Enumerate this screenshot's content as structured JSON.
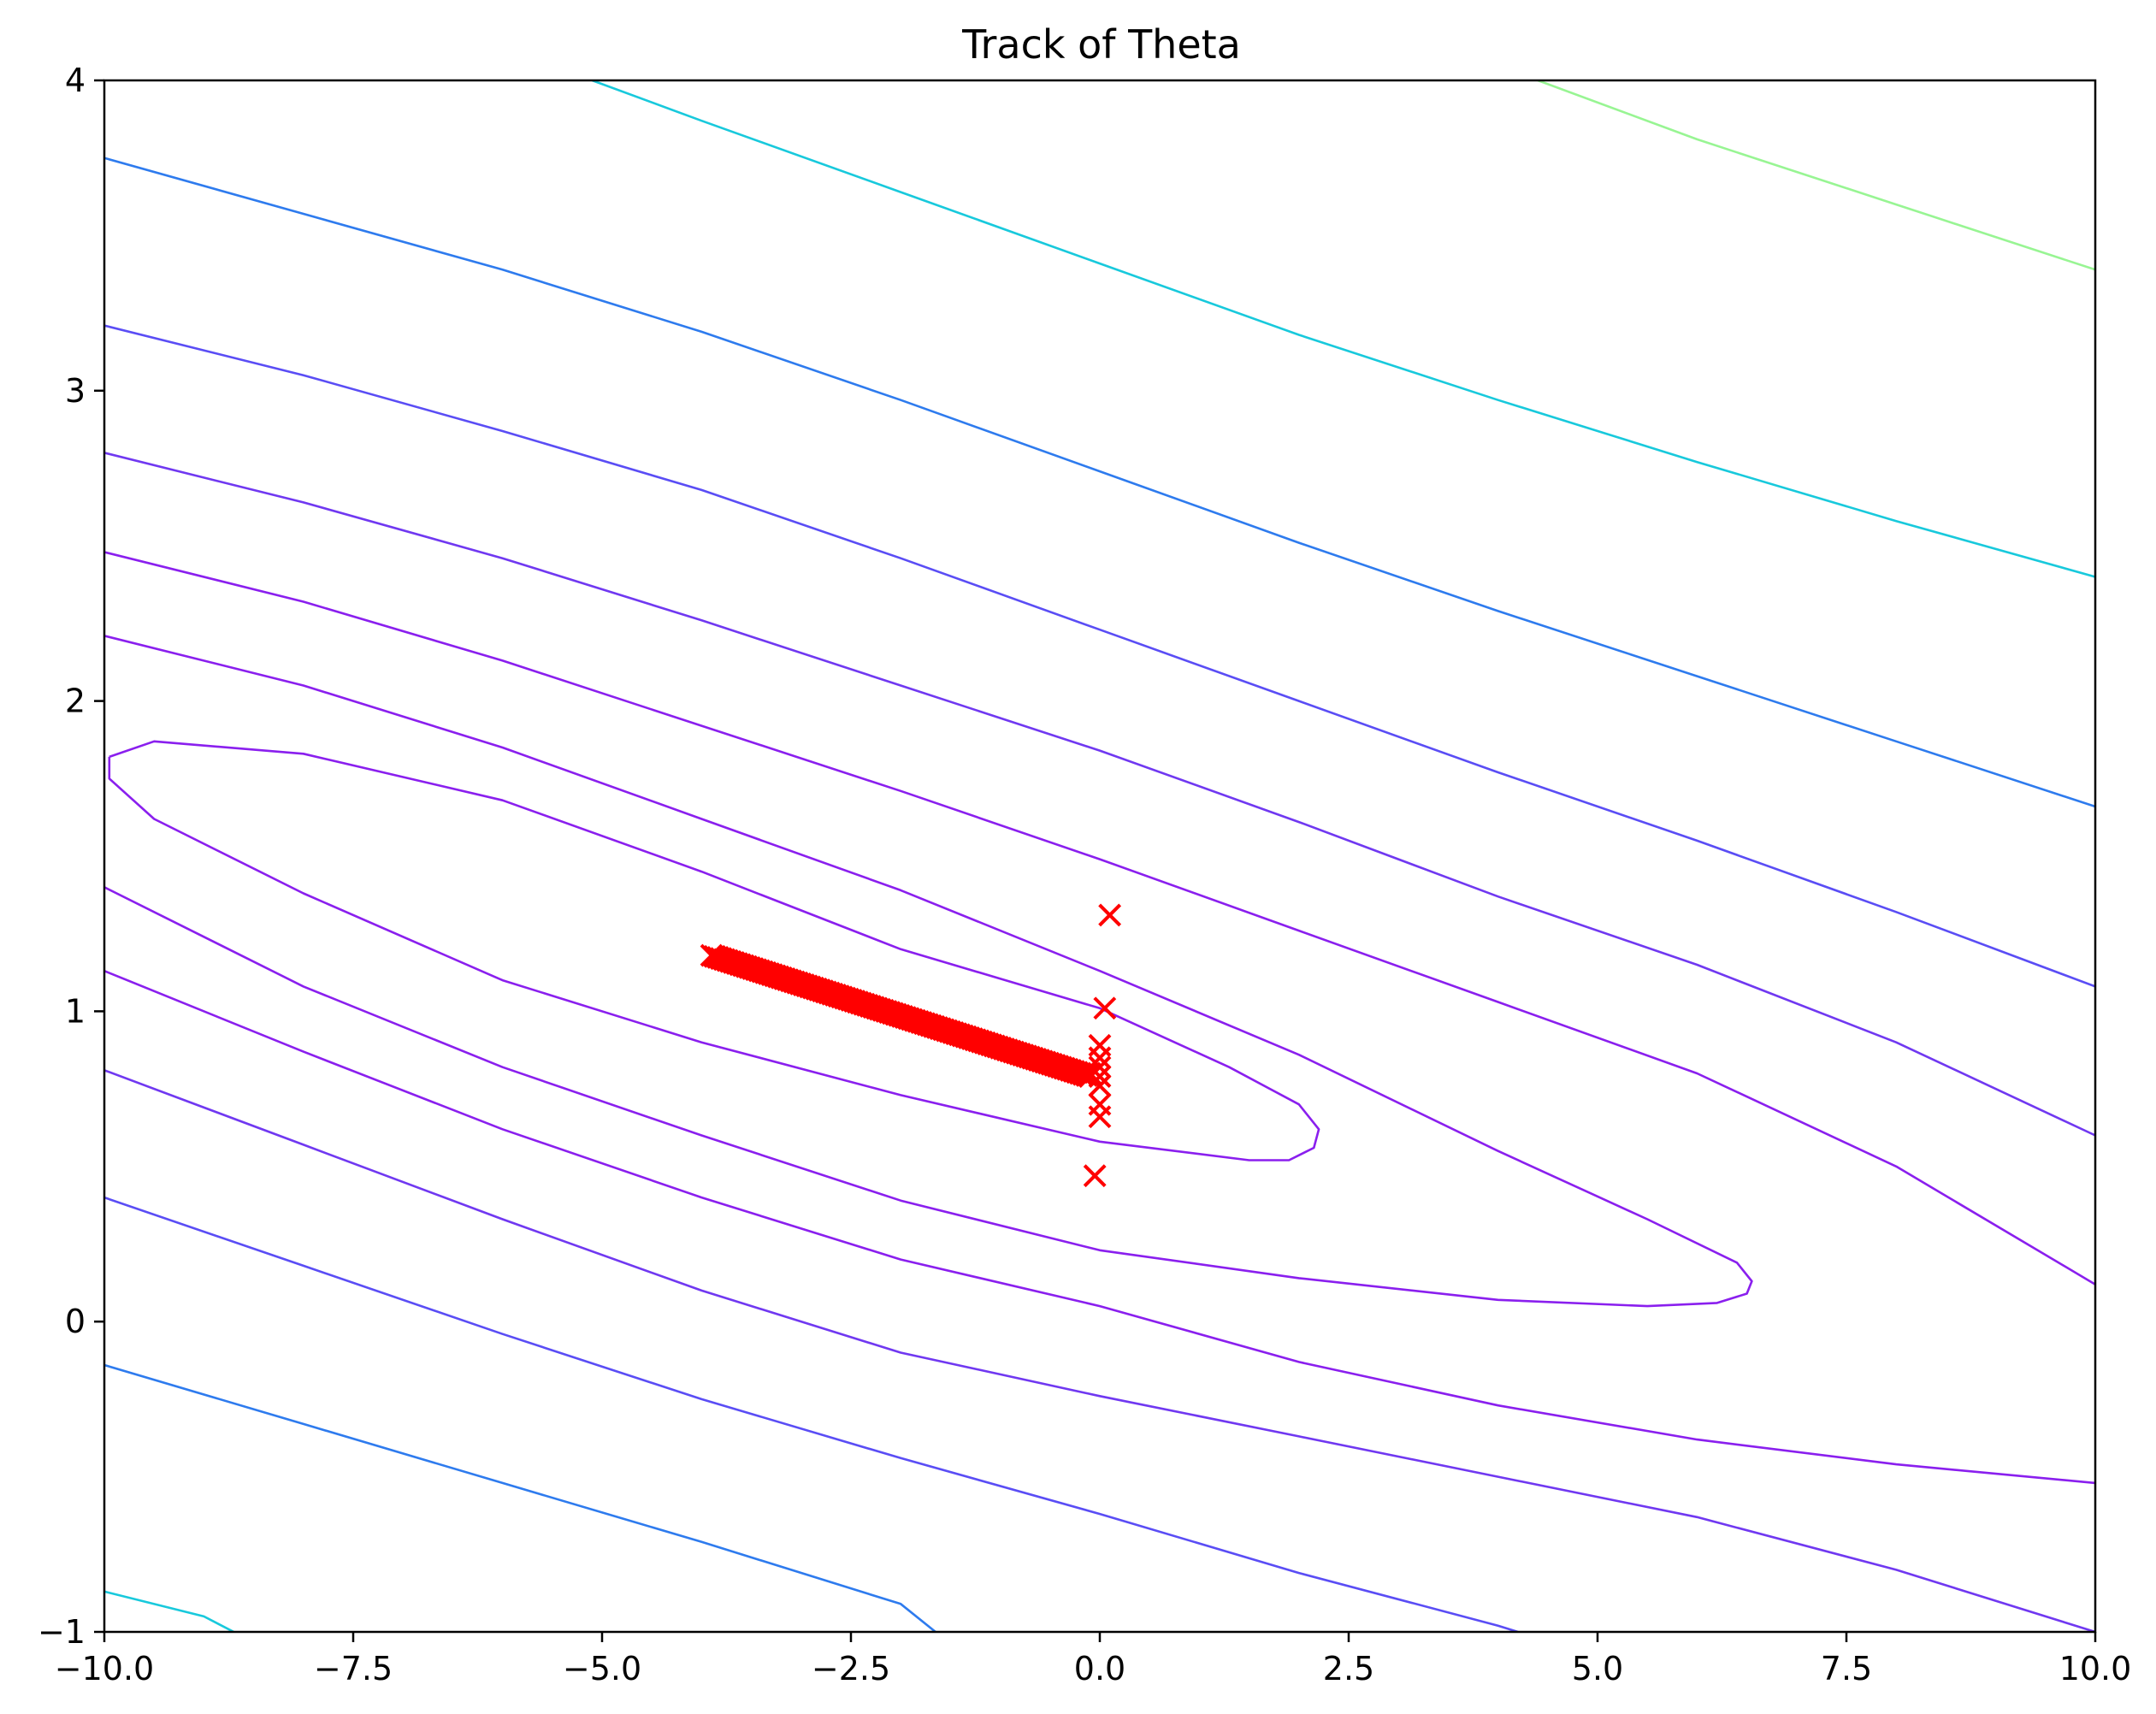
{
  "chart_data": {
    "type": "contour",
    "title": "Track of Theta",
    "xlabel": "",
    "ylabel": "",
    "xlim": [
      -10.0,
      10.0
    ],
    "ylim": [
      -1,
      4
    ],
    "x_ticks": [
      -10.0,
      -7.5,
      -5.0,
      -2.5,
      0.0,
      2.5,
      5.0,
      7.5,
      10.0
    ],
    "x_tick_labels": [
      "−10.0",
      "−7.5",
      "−5.0",
      "−2.5",
      "0.0",
      "2.5",
      "5.0",
      "7.5",
      "10.0"
    ],
    "y_ticks": [
      -1,
      0,
      1,
      2,
      3,
      4
    ],
    "y_tick_labels": [
      "−1",
      "0",
      "1",
      "2",
      "3",
      "4"
    ],
    "grid": false,
    "contours": [
      {
        "name": "ellipse-inner",
        "color": "#8a1fee",
        "points": [
          [
            -9.95,
            1.82
          ],
          [
            -9.5,
            1.87
          ],
          [
            -8.0,
            1.83
          ],
          [
            -6.0,
            1.68
          ],
          [
            -4.0,
            1.45
          ],
          [
            -2.0,
            1.2
          ],
          [
            0.0,
            1.01
          ],
          [
            1.3,
            0.82
          ],
          [
            2.0,
            0.7
          ],
          [
            2.2,
            0.62
          ],
          [
            2.15,
            0.56
          ],
          [
            1.9,
            0.52
          ],
          [
            1.5,
            0.52
          ],
          [
            0.0,
            0.58
          ],
          [
            -2.0,
            0.73
          ],
          [
            -4.0,
            0.9
          ],
          [
            -6.0,
            1.1
          ],
          [
            -8.0,
            1.38
          ],
          [
            -9.5,
            1.62
          ],
          [
            -9.95,
            1.75
          ],
          [
            -9.95,
            1.82
          ]
        ]
      },
      {
        "name": "ellipse-outer",
        "color": "#8a1fee",
        "points": [
          [
            -10.0,
            2.21
          ],
          [
            -8.0,
            2.05
          ],
          [
            -6.0,
            1.85
          ],
          [
            -4.0,
            1.62
          ],
          [
            -2.0,
            1.39
          ],
          [
            0.0,
            1.13
          ],
          [
            2.0,
            0.86
          ],
          [
            4.0,
            0.55
          ],
          [
            5.5,
            0.33
          ],
          [
            6.4,
            0.19
          ],
          [
            6.55,
            0.13
          ],
          [
            6.5,
            0.09
          ],
          [
            6.2,
            0.06
          ],
          [
            5.5,
            0.05
          ],
          [
            4.0,
            0.07
          ],
          [
            2.0,
            0.14
          ],
          [
            0.0,
            0.23
          ],
          [
            -2.0,
            0.39
          ],
          [
            -4.0,
            0.6
          ],
          [
            -6.0,
            0.82
          ],
          [
            -8.0,
            1.08
          ],
          [
            -10.0,
            1.4
          ]
        ]
      },
      {
        "name": "band-3-upper",
        "color": "#8a1fee",
        "points": [
          [
            -10.0,
            2.48
          ],
          [
            -8.0,
            2.32
          ],
          [
            -6.0,
            2.13
          ],
          [
            -4.0,
            1.92
          ],
          [
            -2.0,
            1.71
          ],
          [
            0.0,
            1.49
          ],
          [
            2.0,
            1.26
          ],
          [
            4.0,
            1.03
          ],
          [
            6.0,
            0.8
          ],
          [
            8.0,
            0.5
          ],
          [
            10.0,
            0.12
          ]
        ]
      },
      {
        "name": "band-3-lower",
        "color": "#8a1fee",
        "points": [
          [
            -10.0,
            1.13
          ],
          [
            -8.0,
            0.87
          ],
          [
            -6.0,
            0.62
          ],
          [
            -4.0,
            0.4
          ],
          [
            -2.0,
            0.2
          ],
          [
            0.0,
            0.05
          ],
          [
            2.0,
            -0.13
          ],
          [
            4.0,
            -0.27
          ],
          [
            6.0,
            -0.38
          ],
          [
            8.0,
            -0.46
          ],
          [
            10.0,
            -0.52
          ]
        ]
      },
      {
        "name": "band-4-upper",
        "color": "#7038f1",
        "points": [
          [
            -10.0,
            2.8
          ],
          [
            -8.0,
            2.64
          ],
          [
            -6.0,
            2.46
          ],
          [
            -4.0,
            2.26
          ],
          [
            -2.0,
            2.05
          ],
          [
            0.0,
            1.84
          ],
          [
            2.0,
            1.61
          ],
          [
            4.0,
            1.37
          ],
          [
            6.0,
            1.15
          ],
          [
            8.0,
            0.9
          ],
          [
            10.0,
            0.6
          ]
        ]
      },
      {
        "name": "band-4-lower",
        "color": "#7038f1",
        "points": [
          [
            -10.0,
            0.81
          ],
          [
            -8.0,
            0.57
          ],
          [
            -6.0,
            0.33
          ],
          [
            -4.0,
            0.1
          ],
          [
            -2.0,
            -0.1
          ],
          [
            0.0,
            -0.24
          ],
          [
            2.0,
            -0.37
          ],
          [
            4.0,
            -0.5
          ],
          [
            6.0,
            -0.63
          ],
          [
            8.0,
            -0.8
          ],
          [
            10.0,
            -1.0
          ]
        ]
      },
      {
        "name": "band-5-upper",
        "color": "#5a4df5",
        "points": [
          [
            -10.0,
            3.21
          ],
          [
            -8.0,
            3.05
          ],
          [
            -6.0,
            2.87
          ],
          [
            -4.0,
            2.68
          ],
          [
            -2.0,
            2.46
          ],
          [
            0.0,
            2.23
          ],
          [
            2.0,
            2.0
          ],
          [
            4.0,
            1.77
          ],
          [
            6.0,
            1.55
          ],
          [
            8.0,
            1.32
          ],
          [
            10.0,
            1.08
          ]
        ]
      },
      {
        "name": "band-5-lower",
        "color": "#5a4df5",
        "points": [
          [
            -10.0,
            0.4
          ],
          [
            -8.0,
            0.18
          ],
          [
            -6.0,
            -0.04
          ],
          [
            -4.0,
            -0.25
          ],
          [
            -2.0,
            -0.44
          ],
          [
            0.0,
            -0.62
          ],
          [
            2.0,
            -0.81
          ],
          [
            4.0,
            -0.98
          ],
          [
            4.2,
            -1.0
          ]
        ]
      },
      {
        "name": "band-6-upper",
        "color": "#2e7bee",
        "points": [
          [
            -10.0,
            3.75
          ],
          [
            -8.0,
            3.57
          ],
          [
            -6.0,
            3.39
          ],
          [
            -4.0,
            3.19
          ],
          [
            -2.0,
            2.97
          ],
          [
            0.0,
            2.74
          ],
          [
            2.0,
            2.51
          ],
          [
            4.0,
            2.29
          ],
          [
            6.0,
            2.08
          ],
          [
            8.0,
            1.87
          ],
          [
            10.0,
            1.66
          ]
        ]
      },
      {
        "name": "band-6-lower",
        "color": "#2e7bee",
        "points": [
          [
            -10.0,
            -0.14
          ],
          [
            -8.0,
            -0.33
          ],
          [
            -6.0,
            -0.52
          ],
          [
            -4.0,
            -0.71
          ],
          [
            -2.0,
            -0.91
          ],
          [
            -1.65,
            -1.0
          ]
        ]
      },
      {
        "name": "band-7-upper",
        "color": "#18c9dc",
        "points": [
          [
            -5.1,
            4.0
          ],
          [
            -4.0,
            3.87
          ],
          [
            -2.0,
            3.64
          ],
          [
            0.0,
            3.41
          ],
          [
            2.0,
            3.18
          ],
          [
            4.0,
            2.97
          ],
          [
            6.0,
            2.77
          ],
          [
            8.0,
            2.58
          ],
          [
            10.0,
            2.4
          ]
        ]
      },
      {
        "name": "band-7-lower",
        "color": "#18c9dc",
        "points": [
          [
            -10.0,
            -0.87
          ],
          [
            -9.0,
            -0.95
          ],
          [
            -8.7,
            -1.0
          ]
        ]
      },
      {
        "name": "band-8-upper",
        "color": "#98f593",
        "points": [
          [
            4.4,
            4.0
          ],
          [
            6.0,
            3.81
          ],
          [
            8.0,
            3.6
          ],
          [
            10.0,
            3.39
          ]
        ]
      }
    ],
    "series": [
      {
        "marker": "x",
        "color": "#ff0000",
        "x": [
          0.1,
          0.05,
          0.0,
          0.0,
          0.0,
          0.0,
          0.0,
          0.0,
          0.0,
          -0.05,
          -0.1
        ],
        "y": [
          1.31,
          1.01,
          0.89,
          0.85,
          0.82,
          0.79,
          0.76,
          0.7,
          0.66,
          0.47,
          0.8
        ]
      },
      {
        "marker": "x-dense",
        "color": "#ff0000",
        "x_range": [
          -3.9,
          -0.1
        ],
        "y_range": [
          1.18,
          0.79
        ],
        "count": 120
      }
    ]
  }
}
